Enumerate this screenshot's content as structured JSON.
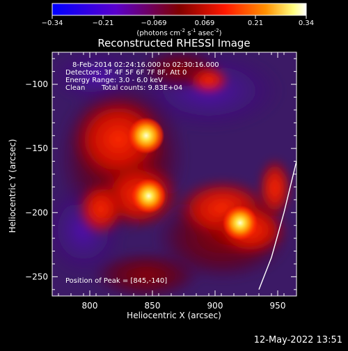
{
  "title": "Reconstructed RHESSI Image",
  "colorbar": {
    "ticks": [
      "-0.34",
      "-0.21",
      "-0.069",
      "0.069",
      "0.21",
      "0.34"
    ],
    "units_prefix": "(photons cm",
    "units_exp1": "-2",
    "units_mid1": " s",
    "units_exp2": "-1",
    "units_mid2": " asec",
    "units_exp3": "-2",
    "units_suffix": ")"
  },
  "annotations": {
    "time_range": "8-Feb-2014 02:24:16.000 to 02:30:16.000",
    "detectors": "Detectors: 3F 4F 5F 6F 7F 8F, Att 0",
    "energy": "Energy Range: 3.0 - 6.0 keV",
    "method": "Clean",
    "counts": "Total counts: 9.83E+04",
    "peak": "Position of Peak = [845,-140]"
  },
  "footer": "12-May-2022 13:51",
  "chart_data": {
    "type": "heatmap",
    "title": "Reconstructed RHESSI Image",
    "xlabel": "Heliocentric X (arcsec)",
    "ylabel": "Heliocentric Y (arcsec)",
    "xlim": [
      770,
      965
    ],
    "ylim": [
      -265,
      -75
    ],
    "x_ticks": [
      800,
      850,
      900,
      950
    ],
    "y_ticks": [
      -100,
      -150,
      -200,
      -250
    ],
    "x_tick_labels": [
      "800",
      "850",
      "900",
      "950"
    ],
    "y_tick_labels": [
      "−100",
      "−150",
      "−200",
      "−250"
    ],
    "colorbar_range": [
      -0.34,
      0.34
    ],
    "colormap": [
      "#0000ff",
      "#6a00d8",
      "#800000",
      "#ff2000",
      "#ff9000",
      "#ffff80",
      "#ffffff"
    ],
    "sources": [
      {
        "x": 845,
        "y": -140,
        "peak": 0.34
      },
      {
        "x": 847,
        "y": -187,
        "peak": 0.3
      },
      {
        "x": 920,
        "y": -208,
        "peak": 0.31
      }
    ],
    "limb_arc": [
      [
        965,
        -160
      ],
      [
        955,
        -200
      ],
      [
        945,
        -235
      ],
      [
        935,
        -260
      ]
    ],
    "grid": false
  }
}
